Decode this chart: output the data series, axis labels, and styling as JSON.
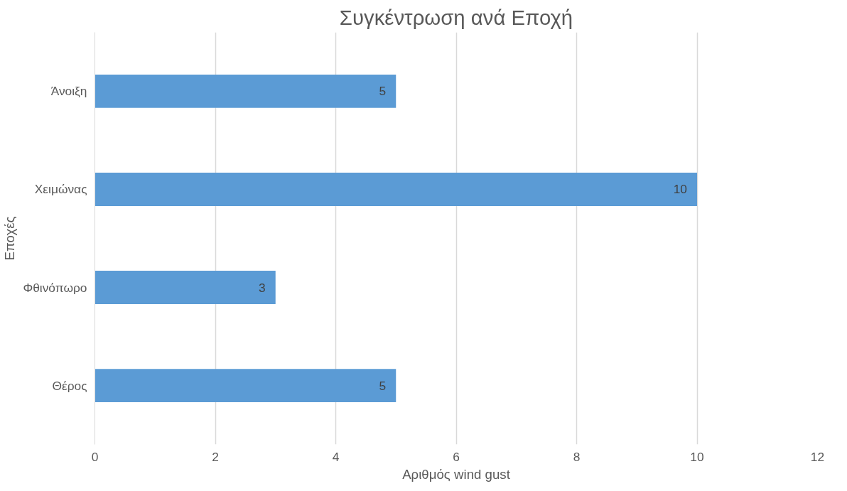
{
  "chart_data": {
    "type": "bar",
    "orientation": "horizontal",
    "title": "Συγκέντρωση ανά Εποχή",
    "xlabel": "Αριθμός wind gust",
    "ylabel": "Εποχές",
    "categories": [
      "Άνοιξη",
      "Χειμώνας",
      "Φθινόπωρο",
      "Θέρος"
    ],
    "values": [
      5,
      10,
      3,
      5
    ],
    "color": "#5b9bd5",
    "xlim": [
      0,
      12
    ],
    "xticks": [
      0,
      2,
      4,
      6,
      8,
      10,
      12
    ],
    "grid": "x",
    "data_labels": true
  }
}
